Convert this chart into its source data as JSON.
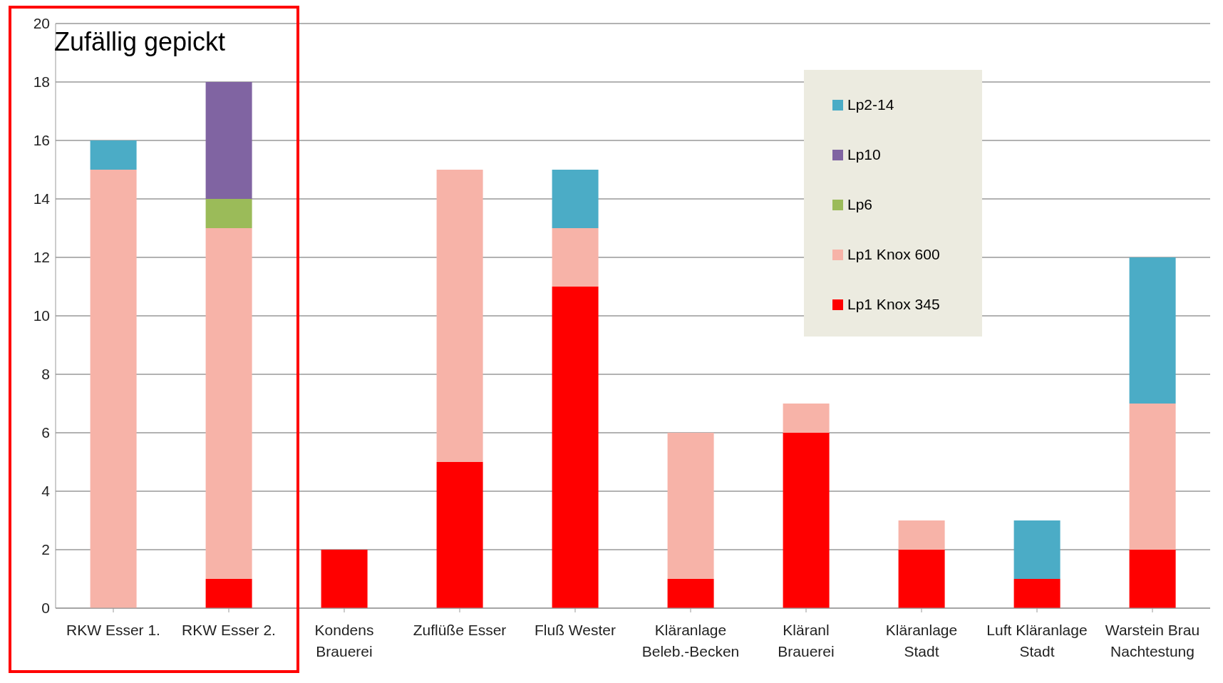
{
  "chart_data": {
    "type": "bar",
    "stacked": true,
    "categories": [
      "RKW Esser 1.",
      "RKW Esser 2.",
      "Kondens\nBrauerei",
      "Zuflüße Esser",
      "Fluß Wester",
      "Kläranlage\nBeleb.-Becken",
      "Kläranl\nBrauerei",
      "Kläranlage\nStadt",
      "Luft Kläranlage\nStadt",
      "Warstein Brau\nNachtestung"
    ],
    "series": [
      {
        "name": "Lp1 Knox 345",
        "color": "#ff0000",
        "values": [
          0,
          1,
          2,
          5,
          11,
          1,
          6,
          2,
          1,
          2
        ]
      },
      {
        "name": "Lp1 Knox 600",
        "color": "#f7b3a8",
        "values": [
          15,
          12,
          0,
          10,
          2,
          5,
          1,
          1,
          0,
          5
        ]
      },
      {
        "name": "Lp6",
        "color": "#9bbb59",
        "values": [
          0,
          1,
          0,
          0,
          0,
          0,
          0,
          0,
          0,
          0
        ]
      },
      {
        "name": "Lp10",
        "color": "#8064a2",
        "values": [
          0,
          4,
          0,
          0,
          0,
          0,
          0,
          0,
          0,
          0
        ]
      },
      {
        "name": "Lp2-14",
        "color": "#4bacc6",
        "values": [
          1,
          0,
          0,
          0,
          2,
          0,
          0,
          0,
          2,
          5
        ]
      }
    ],
    "ylim": [
      0,
      20
    ],
    "yticks": [
      0,
      2,
      4,
      6,
      8,
      10,
      12,
      14,
      16,
      18,
      20
    ],
    "grid": "y",
    "legend": "top right",
    "annotations": [
      "Zufällig gepickt"
    ]
  }
}
